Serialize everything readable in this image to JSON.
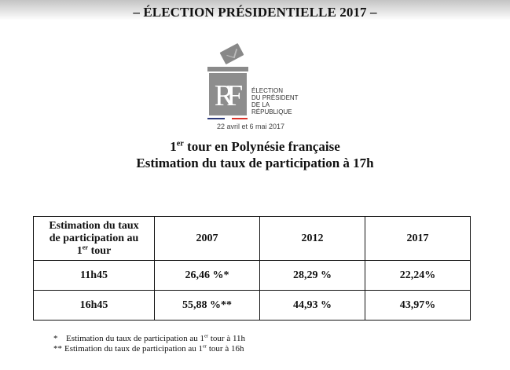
{
  "document": {
    "main_title": "– ÉLECTION PRÉSIDENTIELLE 2017 –",
    "logo": {
      "icon": "ballot-box-rf-logo",
      "monogram": "RF",
      "text_lines": [
        "ÉLECTION",
        "DU PRÉSIDENT",
        "DE LA",
        "RÉPUBLIQUE"
      ],
      "date": "22 avril et 6 mai 2017",
      "colors": {
        "gray": "#8d8d8d",
        "blue": "#2d3a7a",
        "red": "#d9322a"
      }
    },
    "subtitle": {
      "line1_num": "1",
      "line1_sup": "er",
      "line1_rest": " tour en Polynésie française",
      "line2": "Estimation du taux de participation à 17h"
    }
  },
  "table": {
    "header_first": {
      "line1": "Estimation du taux",
      "line2": "de participation au",
      "line3_num": "1",
      "line3_sup": "er",
      "line3_rest": " tour"
    },
    "years": [
      "2007",
      "2012",
      "2017"
    ],
    "rows": [
      {
        "time": "11h45",
        "values": [
          "26,46 %*",
          "28,29 %",
          "22,24%"
        ]
      },
      {
        "time": "16h45",
        "values": [
          "55,88 %**",
          "44,93 %",
          "43,97%"
        ]
      }
    ]
  },
  "notes": [
    {
      "mark": "*",
      "text_before": "Estimation du taux de participation au 1",
      "sup": "er",
      "text_after": " tour à 11h"
    },
    {
      "mark": "**",
      "text_before": "Estimation du taux de participation au 1",
      "sup": "er",
      "text_after": " tour à 16h"
    }
  ]
}
